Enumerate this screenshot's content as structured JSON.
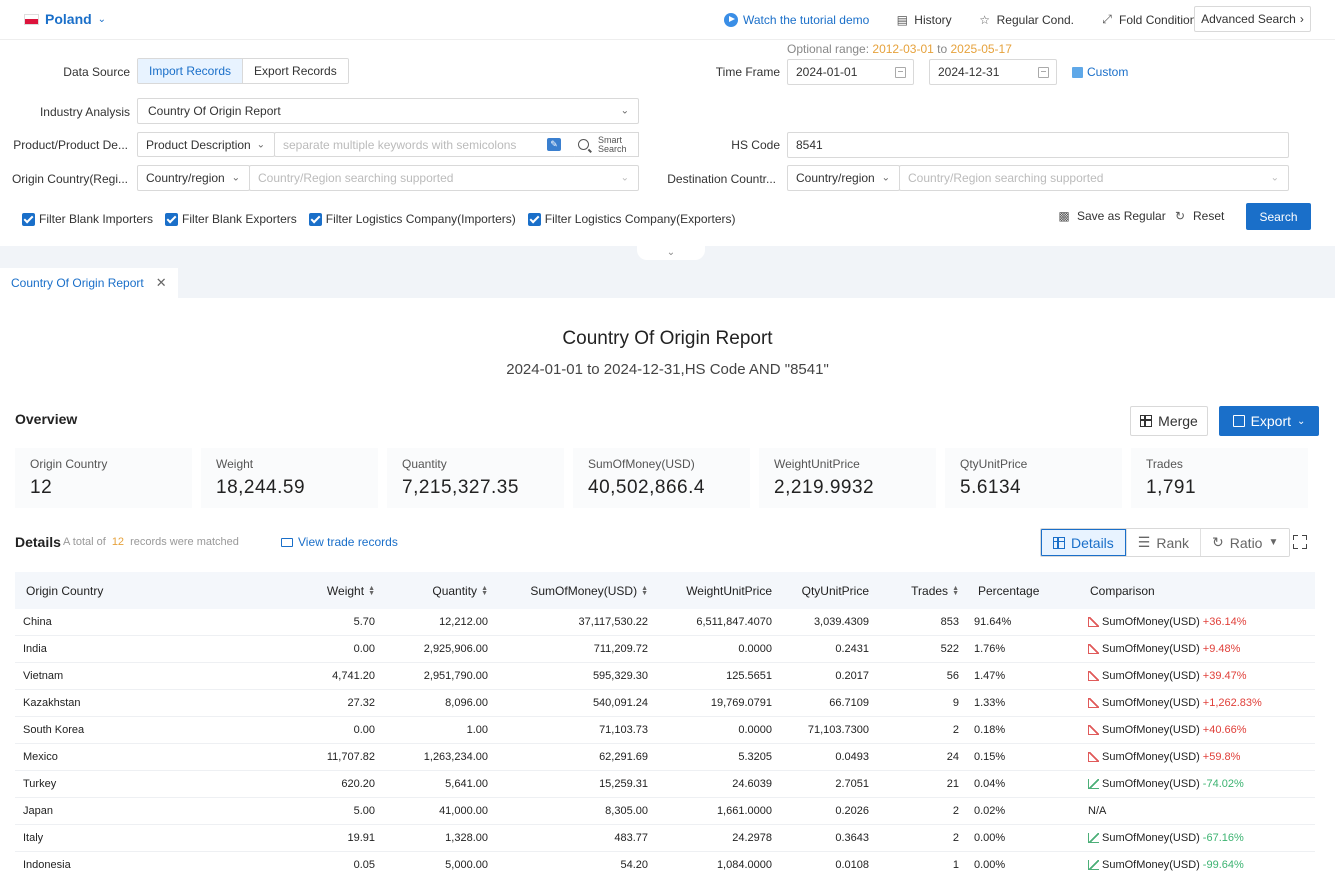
{
  "topbar": {
    "country": "Poland",
    "actions": {
      "tutorial": "Watch the tutorial demo",
      "history": "History",
      "regular": "Regular Cond.",
      "fold": "Fold Conditions"
    },
    "advanced": "Advanced Search"
  },
  "form": {
    "data_source_label": "Data Source",
    "data_source_options": [
      "Import Records",
      "Export Records"
    ],
    "optional_prefix": "Optional range",
    "optional_start": "2012-03-01",
    "optional_to": "to",
    "optional_end": "2025-05-17",
    "time_frame_label": "Time Frame",
    "date_start": "2024-01-01",
    "date_end": "2024-12-31",
    "custom": "Custom",
    "industry_label": "Industry Analysis",
    "industry_value": "Country Of Origin Report",
    "product_label": "Product/Product De...",
    "product_type": "Product Description",
    "keyword_placeholder": "separate multiple keywords with semicolons",
    "smart_search_1": "Smart",
    "smart_search_2": "Search",
    "hs_label": "HS Code",
    "hs_value": "8541",
    "origin_label": "Origin Country(Regi...",
    "origin_type": "Country/region",
    "origin_placeholder": "Country/Region searching supported",
    "dest_label": "Destination Countr...",
    "dest_type": "Country/region",
    "dest_placeholder": "Country/Region searching supported",
    "filters": [
      "Filter Blank Importers",
      "Filter Blank Exporters",
      "Filter Logistics Company(Importers)",
      "Filter Logistics Company(Exporters)"
    ],
    "save_regular": "Save as Regular",
    "reset": "Reset",
    "search": "Search"
  },
  "report_tab": "Country Of Origin Report",
  "report": {
    "title": "Country Of Origin Report",
    "subtitle": "2024-01-01 to 2024-12-31,HS Code AND \"8541\""
  },
  "overview": {
    "title": "Overview",
    "merge": "Merge",
    "export": "Export",
    "cards": [
      {
        "label": "Origin Country",
        "value": "12"
      },
      {
        "label": "Weight",
        "value": "18,244.59"
      },
      {
        "label": "Quantity",
        "value": "7,215,327.35"
      },
      {
        "label": "SumOfMoney(USD)",
        "value": "40,502,866.4"
      },
      {
        "label": "WeightUnitPrice",
        "value": "2,219.9932"
      },
      {
        "label": "QtyUnitPrice",
        "value": "5.6134"
      },
      {
        "label": "Trades",
        "value": "1,791"
      }
    ]
  },
  "details": {
    "title": "Details",
    "meta_prefix": "A total of",
    "meta_count": "12",
    "meta_suffix": "records were matched",
    "view_link": "View trade records",
    "views": [
      "Details",
      "Rank",
      "Ratio"
    ],
    "columns": [
      "Origin Country",
      "Weight",
      "Quantity",
      "SumOfMoney(USD)",
      "WeightUnitPrice",
      "QtyUnitPrice",
      "Trades",
      "Percentage",
      "Comparison"
    ],
    "rows": [
      {
        "country": "China",
        "weight": "5.70",
        "quantity": "12,212.00",
        "money": "37,117,530.22",
        "wup": "6,511,847.4070",
        "qup": "3,039.4309",
        "trades": "853",
        "pct": "91.64%",
        "metric": "SumOfMoney(USD)",
        "change": "+36.14%",
        "dir": "up"
      },
      {
        "country": "India",
        "weight": "0.00",
        "quantity": "2,925,906.00",
        "money": "711,209.72",
        "wup": "0.0000",
        "qup": "0.2431",
        "trades": "522",
        "pct": "1.76%",
        "metric": "SumOfMoney(USD)",
        "change": "+9.48%",
        "dir": "up"
      },
      {
        "country": "Vietnam",
        "weight": "4,741.20",
        "quantity": "2,951,790.00",
        "money": "595,329.30",
        "wup": "125.5651",
        "qup": "0.2017",
        "trades": "56",
        "pct": "1.47%",
        "metric": "SumOfMoney(USD)",
        "change": "+39.47%",
        "dir": "up"
      },
      {
        "country": "Kazakhstan",
        "weight": "27.32",
        "quantity": "8,096.00",
        "money": "540,091.24",
        "wup": "19,769.0791",
        "qup": "66.7109",
        "trades": "9",
        "pct": "1.33%",
        "metric": "SumOfMoney(USD)",
        "change": "+1,262.83%",
        "dir": "up"
      },
      {
        "country": "South Korea",
        "weight": "0.00",
        "quantity": "1.00",
        "money": "71,103.73",
        "wup": "0.0000",
        "qup": "71,103.7300",
        "trades": "2",
        "pct": "0.18%",
        "metric": "SumOfMoney(USD)",
        "change": "+40.66%",
        "dir": "up"
      },
      {
        "country": "Mexico",
        "weight": "11,707.82",
        "quantity": "1,263,234.00",
        "money": "62,291.69",
        "wup": "5.3205",
        "qup": "0.0493",
        "trades": "24",
        "pct": "0.15%",
        "metric": "SumOfMoney(USD)",
        "change": "+59.8%",
        "dir": "up"
      },
      {
        "country": "Turkey",
        "weight": "620.20",
        "quantity": "5,641.00",
        "money": "15,259.31",
        "wup": "24.6039",
        "qup": "2.7051",
        "trades": "21",
        "pct": "0.04%",
        "metric": "SumOfMoney(USD)",
        "change": "-74.02%",
        "dir": "down"
      },
      {
        "country": "Japan",
        "weight": "5.00",
        "quantity": "41,000.00",
        "money": "8,305.00",
        "wup": "1,661.0000",
        "qup": "0.2026",
        "trades": "2",
        "pct": "0.02%",
        "metric": "N/A",
        "change": "",
        "dir": "none"
      },
      {
        "country": "Italy",
        "weight": "19.91",
        "quantity": "1,328.00",
        "money": "483.77",
        "wup": "24.2978",
        "qup": "0.3643",
        "trades": "2",
        "pct": "0.00%",
        "metric": "SumOfMoney(USD)",
        "change": "-67.16%",
        "dir": "down"
      },
      {
        "country": "Indonesia",
        "weight": "0.05",
        "quantity": "5,000.00",
        "money": "54.20",
        "wup": "1,084.0000",
        "qup": "0.0108",
        "trades": "1",
        "pct": "0.00%",
        "metric": "SumOfMoney(USD)",
        "change": "-99.64%",
        "dir": "down"
      }
    ]
  }
}
